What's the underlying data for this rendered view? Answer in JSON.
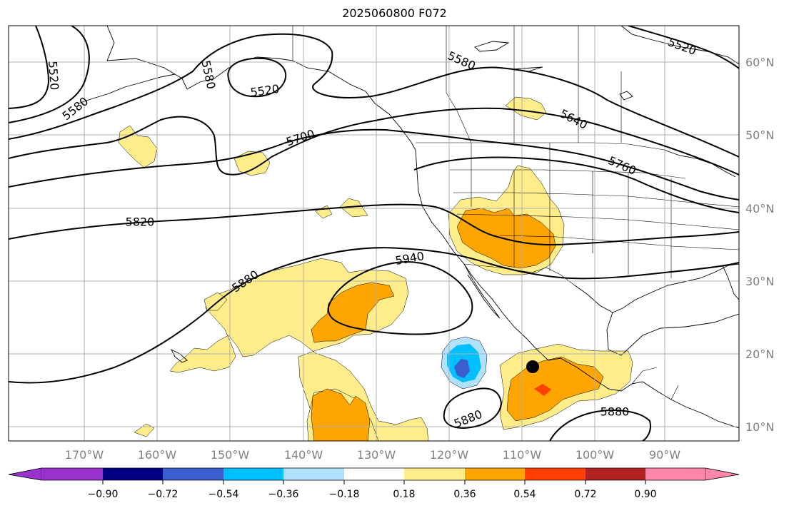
{
  "title": "2025060800 F072",
  "map": {
    "lon_ticks": [
      "170°W",
      "160°W",
      "150°W",
      "140°W",
      "130°W",
      "120°W",
      "110°W",
      "100°W",
      "90°W"
    ],
    "lat_ticks": [
      "60°N",
      "50°N",
      "40°N",
      "30°N",
      "20°N",
      "10°N"
    ],
    "contour_labels": [
      "5520",
      "5520",
      "5580",
      "5580",
      "5580",
      "5520",
      "5640",
      "5700",
      "5760",
      "5820",
      "5880",
      "5940",
      "5880",
      "5880"
    ],
    "marker": "storm-position-dot",
    "contour_color": "#000000",
    "gridline_color": "#b0b0b0",
    "tick_label_color": "#808080"
  },
  "colorbar": {
    "colors": [
      "#9932cc",
      "#000080",
      "#3a5fcd",
      "#00bfff",
      "#b0e2ff",
      "#ffffff",
      "#ffec8b",
      "#ffa500",
      "#ff4000",
      "#b22222",
      "#ff88aa"
    ],
    "tick_labels": [
      "−0.90",
      "−0.72",
      "−0.54",
      "−0.36",
      "−0.18",
      "0.18",
      "0.36",
      "0.54",
      "0.72",
      "0.90"
    ],
    "extend": "both"
  }
}
